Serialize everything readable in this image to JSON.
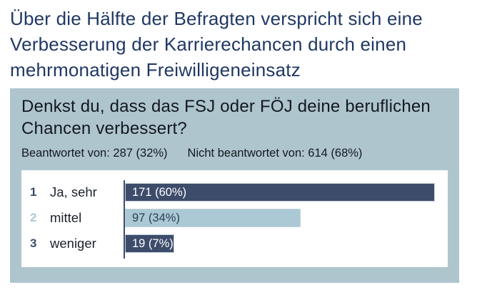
{
  "page": {
    "title": "Über die Hälfte der Befragten verspricht sich eine Verbesserung der Karrierechancen durch einen mehrmonatigen Freiwilligeneinsatz"
  },
  "panel": {
    "question": "Denkst du, dass das FSJ oder FÖJ deine beruflichen Chancen verbessert?",
    "answered_label": "Beantwortet von: 287 (32%)",
    "not_answered_label": "Nicht beantwortet von: 614 (68%)"
  },
  "chart_data": {
    "type": "bar",
    "orientation": "horizontal",
    "title": "Denkst du, dass das FSJ oder FÖJ deine beruflichen Chancen verbessert?",
    "categories": [
      "Ja, sehr",
      "mittel",
      "weniger"
    ],
    "values": [
      171,
      97,
      19
    ],
    "percentages": [
      60,
      34,
      7
    ],
    "answered": "Beantwortet von: 287 (32%)",
    "not_answered": "Nicht beantwortet von: 614 (68%)",
    "xlim": [
      0,
      63
    ],
    "grid": false,
    "legend": false,
    "rows": [
      {
        "rank": "1",
        "category": "Ja, sehr",
        "value": 171,
        "percent": 60,
        "value_label": "171 (60%)",
        "bar_color": "#3e4c6b",
        "text_color": "#ffffff"
      },
      {
        "rank": "2",
        "category": "mittel",
        "value": 97,
        "percent": 34,
        "value_label": "97 (34%)",
        "bar_color": "#abc9d4",
        "text_color": "#2e3d5a"
      },
      {
        "rank": "3",
        "category": "weniger",
        "value": 19,
        "percent": 7,
        "value_label": "19 (7%)",
        "bar_color": "#3e4c6b",
        "text_color": "#ffffff"
      }
    ]
  },
  "colors": {
    "title_text": "#203864",
    "panel_background": "#aec5ce",
    "chart_background": "#ffffff",
    "axis_line": "#3e4c6b",
    "bar_dark": "#3e4c6b",
    "bar_light": "#abc9d4",
    "body_text": "#14181f"
  }
}
